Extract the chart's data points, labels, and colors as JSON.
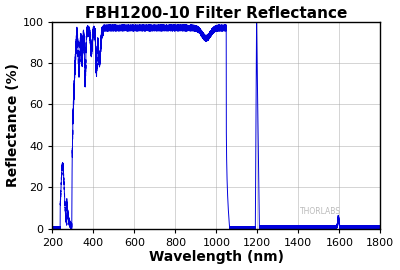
{
  "title": "FBH1200-10 Filter Reflectance",
  "xlabel": "Wavelength (nm)",
  "ylabel": "Reflectance (%)",
  "xlim": [
    200,
    1800
  ],
  "ylim": [
    0,
    100
  ],
  "xticks": [
    200,
    400,
    600,
    800,
    1000,
    1200,
    1400,
    1600,
    1800
  ],
  "yticks": [
    0,
    20,
    40,
    60,
    80,
    100
  ],
  "line_color": "#0000DD",
  "background_color": "#FFFFFF",
  "grid_color": "#AAAAAA",
  "title_fontsize": 11,
  "label_fontsize": 10,
  "tick_fontsize": 8,
  "watermark": "THORLABS",
  "watermark_color": "#BBBBBB"
}
